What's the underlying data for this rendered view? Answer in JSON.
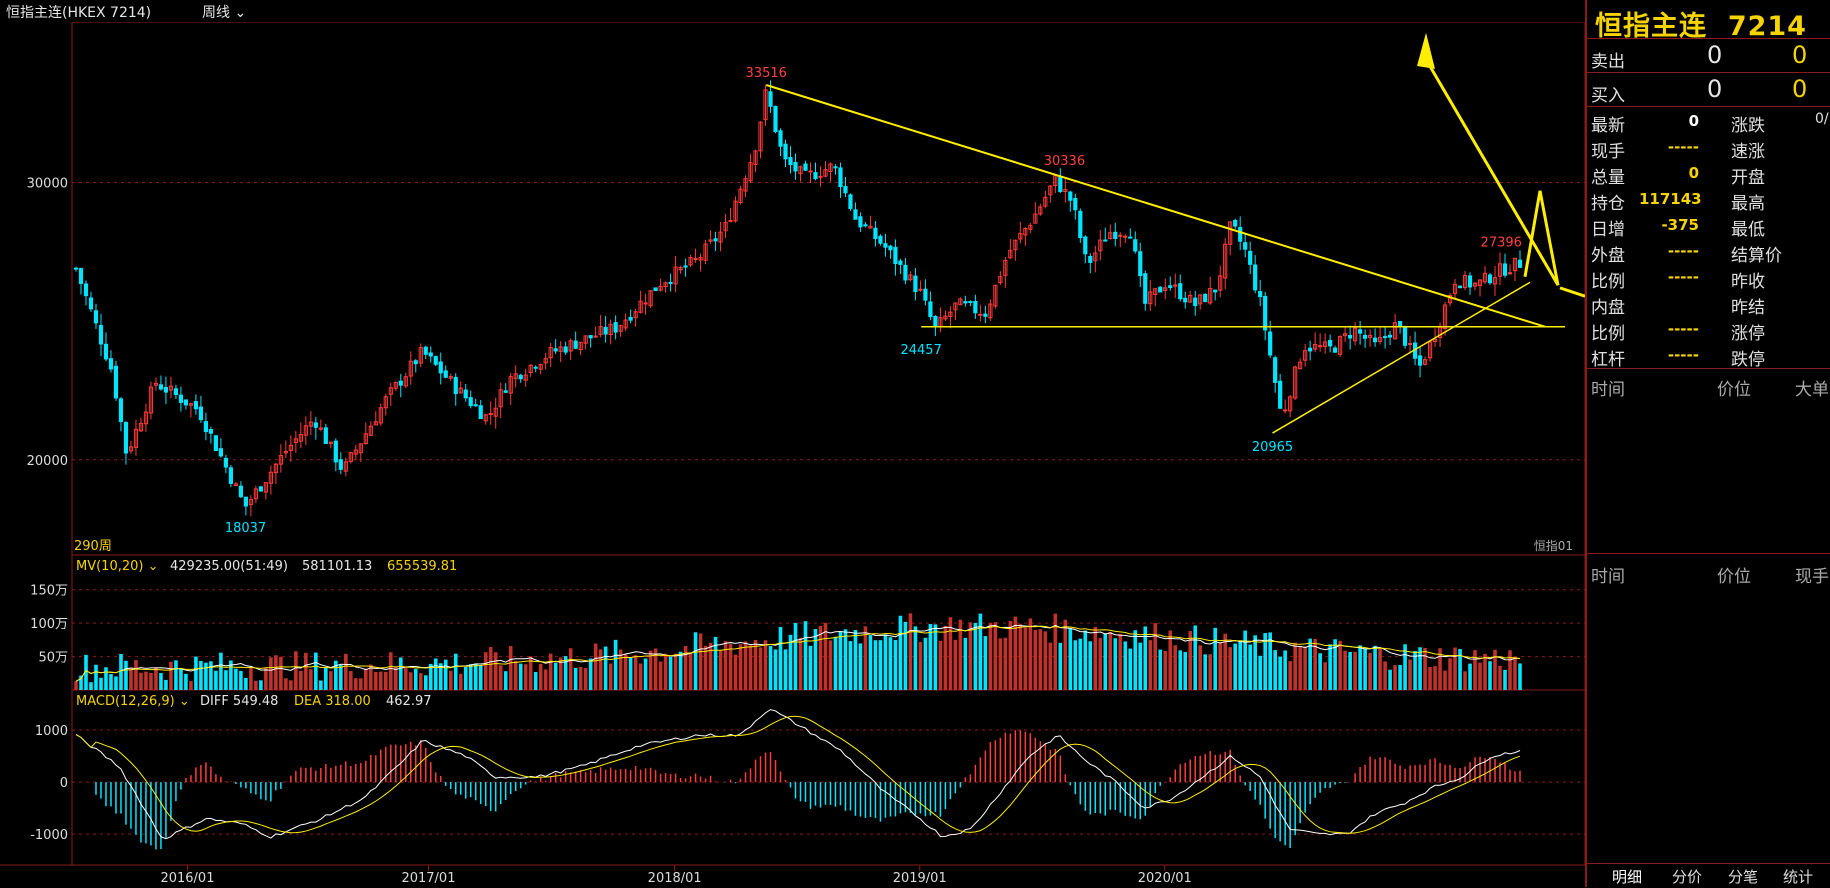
{
  "header": {
    "title": "恒指主连(HKEX 7214)",
    "period": "周线"
  },
  "chart_data": [
    {
      "type": "candlestick",
      "name": "main-price",
      "ylim": [
        17000,
        35500
      ],
      "yticks": [
        20000,
        30000
      ],
      "xticks": [
        {
          "label": "2016/01",
          "t": 0.0772
        },
        {
          "label": "2017/01",
          "t": 0.2441
        },
        {
          "label": "2018/01",
          "t": 0.4146
        },
        {
          "label": "2019/01",
          "t": 0.5843
        },
        {
          "label": "2020/01",
          "t": 0.754
        }
      ],
      "keypoints": [
        {
          "t": 0.0,
          "v": 26900
        },
        {
          "t": 0.025,
          "v": 23200
        },
        {
          "t": 0.035,
          "v": 20200
        },
        {
          "t": 0.055,
          "v": 22800
        },
        {
          "t": 0.085,
          "v": 21800
        },
        {
          "t": 0.117,
          "v": 18300
        },
        {
          "t": 0.145,
          "v": 20300
        },
        {
          "t": 0.165,
          "v": 21500
        },
        {
          "t": 0.185,
          "v": 19600
        },
        {
          "t": 0.215,
          "v": 22200
        },
        {
          "t": 0.24,
          "v": 23900
        },
        {
          "t": 0.265,
          "v": 22500
        },
        {
          "t": 0.285,
          "v": 21500
        },
        {
          "t": 0.3,
          "v": 22900
        },
        {
          "t": 0.33,
          "v": 23900
        },
        {
          "t": 0.35,
          "v": 24300
        },
        {
          "t": 0.375,
          "v": 24800
        },
        {
          "t": 0.405,
          "v": 26400
        },
        {
          "t": 0.43,
          "v": 27200
        },
        {
          "t": 0.45,
          "v": 28400
        },
        {
          "t": 0.47,
          "v": 31200
        },
        {
          "t": 0.478,
          "v": 33300
        },
        {
          "t": 0.49,
          "v": 30800
        },
        {
          "t": 0.505,
          "v": 30200
        },
        {
          "t": 0.525,
          "v": 30600
        },
        {
          "t": 0.54,
          "v": 28700
        },
        {
          "t": 0.56,
          "v": 27700
        },
        {
          "t": 0.585,
          "v": 26000
        },
        {
          "t": 0.595,
          "v": 24700
        },
        {
          "t": 0.61,
          "v": 25600
        },
        {
          "t": 0.63,
          "v": 25300
        },
        {
          "t": 0.645,
          "v": 27400
        },
        {
          "t": 0.665,
          "v": 28900
        },
        {
          "t": 0.678,
          "v": 30100
        },
        {
          "t": 0.69,
          "v": 29300
        },
        {
          "t": 0.7,
          "v": 27000
        },
        {
          "t": 0.715,
          "v": 28200
        },
        {
          "t": 0.73,
          "v": 28300
        },
        {
          "t": 0.74,
          "v": 25600
        },
        {
          "t": 0.755,
          "v": 26400
        },
        {
          "t": 0.775,
          "v": 25600
        },
        {
          "t": 0.79,
          "v": 26200
        },
        {
          "t": 0.8,
          "v": 28500
        },
        {
          "t": 0.81,
          "v": 27500
        },
        {
          "t": 0.82,
          "v": 25700
        },
        {
          "t": 0.828,
          "v": 23500
        },
        {
          "t": 0.835,
          "v": 21500
        },
        {
          "t": 0.85,
          "v": 24100
        },
        {
          "t": 0.87,
          "v": 24000
        },
        {
          "t": 0.885,
          "v": 24700
        },
        {
          "t": 0.9,
          "v": 24100
        },
        {
          "t": 0.915,
          "v": 24900
        },
        {
          "t": 0.93,
          "v": 23300
        },
        {
          "t": 0.94,
          "v": 24400
        },
        {
          "t": 0.955,
          "v": 26500
        },
        {
          "t": 0.97,
          "v": 26300
        },
        {
          "t": 0.985,
          "v": 26800
        },
        {
          "t": 1.0,
          "v": 27100
        }
      ],
      "point_labels": [
        {
          "text": "33516",
          "t": 0.478,
          "v": 33516,
          "color": "#ff4040",
          "pos": "above"
        },
        {
          "text": "30336",
          "t": 0.6845,
          "v": 30336,
          "color": "#ff4040",
          "pos": "above"
        },
        {
          "text": "27396",
          "t": 0.987,
          "v": 27396,
          "color": "#ff4040",
          "pos": "above"
        },
        {
          "text": "24457",
          "t": 0.5853,
          "v": 24457,
          "color": "#00e5ff",
          "pos": "below"
        },
        {
          "text": "20965",
          "t": 0.8286,
          "v": 20965,
          "color": "#00e5ff",
          "pos": "below"
        },
        {
          "text": "18037",
          "t": 0.1174,
          "v": 18037,
          "color": "#00e5ff",
          "pos": "below"
        }
      ],
      "bottom_left_label": "290周",
      "bottom_right_label": "恒指01"
    },
    {
      "type": "bar",
      "name": "volume",
      "legend": "MV(10,20)",
      "values_text": [
        "429235.00(51:49)",
        "581101.13",
        "655539.81"
      ],
      "yticks": [
        {
          "label": "150万",
          "v": 150
        },
        {
          "label": "100万",
          "v": 100
        },
        {
          "label": "50万",
          "v": 50
        }
      ],
      "ylim": [
        0,
        175
      ],
      "units": "万"
    },
    {
      "type": "line",
      "name": "macd",
      "legend": "MACD(12,26,9)",
      "diff_text": "DIFF 549.48",
      "dea_text": "DEA 318.00",
      "macd_text": "462.97",
      "yticks": [
        1000,
        0,
        -1000
      ],
      "ylim": [
        -1400,
        1500
      ],
      "keypoints": [
        {
          "t": 0.0,
          "v": 900
        },
        {
          "t": 0.03,
          "v": 300
        },
        {
          "t": 0.06,
          "v": -1100
        },
        {
          "t": 0.09,
          "v": -700
        },
        {
          "t": 0.115,
          "v": -800
        },
        {
          "t": 0.135,
          "v": -1050
        },
        {
          "t": 0.17,
          "v": -700
        },
        {
          "t": 0.2,
          "v": -300
        },
        {
          "t": 0.23,
          "v": 500
        },
        {
          "t": 0.24,
          "v": 800
        },
        {
          "t": 0.27,
          "v": 500
        },
        {
          "t": 0.29,
          "v": 100
        },
        {
          "t": 0.32,
          "v": 100
        },
        {
          "t": 0.35,
          "v": 300
        },
        {
          "t": 0.39,
          "v": 700
        },
        {
          "t": 0.43,
          "v": 900
        },
        {
          "t": 0.46,
          "v": 900
        },
        {
          "t": 0.48,
          "v": 1420
        },
        {
          "t": 0.5,
          "v": 1100
        },
        {
          "t": 0.53,
          "v": 600
        },
        {
          "t": 0.56,
          "v": -200
        },
        {
          "t": 0.58,
          "v": -600
        },
        {
          "t": 0.6,
          "v": -1050
        },
        {
          "t": 0.62,
          "v": -900
        },
        {
          "t": 0.64,
          "v": -200
        },
        {
          "t": 0.66,
          "v": 500
        },
        {
          "t": 0.68,
          "v": 900
        },
        {
          "t": 0.7,
          "v": 400
        },
        {
          "t": 0.72,
          "v": 0
        },
        {
          "t": 0.74,
          "v": -500
        },
        {
          "t": 0.76,
          "v": -300
        },
        {
          "t": 0.78,
          "v": 100
        },
        {
          "t": 0.8,
          "v": 500
        },
        {
          "t": 0.82,
          "v": 100
        },
        {
          "t": 0.84,
          "v": -900
        },
        {
          "t": 0.86,
          "v": -1000
        },
        {
          "t": 0.88,
          "v": -1000
        },
        {
          "t": 0.9,
          "v": -600
        },
        {
          "t": 0.92,
          "v": -400
        },
        {
          "t": 0.94,
          "v": -100
        },
        {
          "t": 0.96,
          "v": 100
        },
        {
          "t": 0.98,
          "v": 500
        },
        {
          "t": 1.0,
          "v": 600
        }
      ]
    }
  ],
  "quote_panel": {
    "name": "恒指主连",
    "code": "7214",
    "sell_label": "卖出",
    "sell_price": "0",
    "sell_vol": "0",
    "buy_label": "买入",
    "buy_price": "0",
    "buy_vol": "0",
    "rows": [
      {
        "l1": "最新",
        "v1": "0",
        "c1": "#ffffff",
        "l2": "涨跌",
        "v2": "0/"
      },
      {
        "l1": "现手",
        "v1": "-----",
        "c1": "#f5d400",
        "l2": "速涨",
        "v2": ""
      },
      {
        "l1": "总量",
        "v1": "0",
        "c1": "#f5d400",
        "l2": "开盘",
        "v2": ""
      },
      {
        "l1": "持仓",
        "v1": "117143",
        "c1": "#f5d400",
        "l2": "最高",
        "v2": ""
      },
      {
        "l1": "日增",
        "v1": "-375",
        "c1": "#f5d400",
        "l2": "最低",
        "v2": ""
      },
      {
        "l1": "外盘",
        "v1": "-----",
        "c1": "#f5d400",
        "l2": "结算价",
        "v2": ""
      },
      {
        "l1": "比例",
        "v1": "-----",
        "c1": "#f5d400",
        "l2": "昨收",
        "v2": ""
      },
      {
        "l1": "内盘",
        "v1": "",
        "c1": "#f5d400",
        "l2": "昨结",
        "v2": ""
      },
      {
        "l1": "比例",
        "v1": "-----",
        "c1": "#f5d400",
        "l2": "涨停",
        "v2": ""
      },
      {
        "l1": "杠杆",
        "v1": "-----",
        "c1": "#f5d400",
        "l2": "跌停",
        "v2": ""
      }
    ],
    "trade_header": [
      "时间",
      "价位",
      "大单"
    ],
    "tick_header": [
      "时间",
      "价位",
      "现手"
    ],
    "tabs": [
      "明细",
      "分价",
      "分笔",
      "统计"
    ]
  },
  "colors": {
    "up": "#ff3b3b",
    "down": "#00e5ff",
    "grid": "#8b1a1a",
    "trend": "#ffee00",
    "ma1": "#ffffff",
    "ma2": "#ffee00"
  }
}
